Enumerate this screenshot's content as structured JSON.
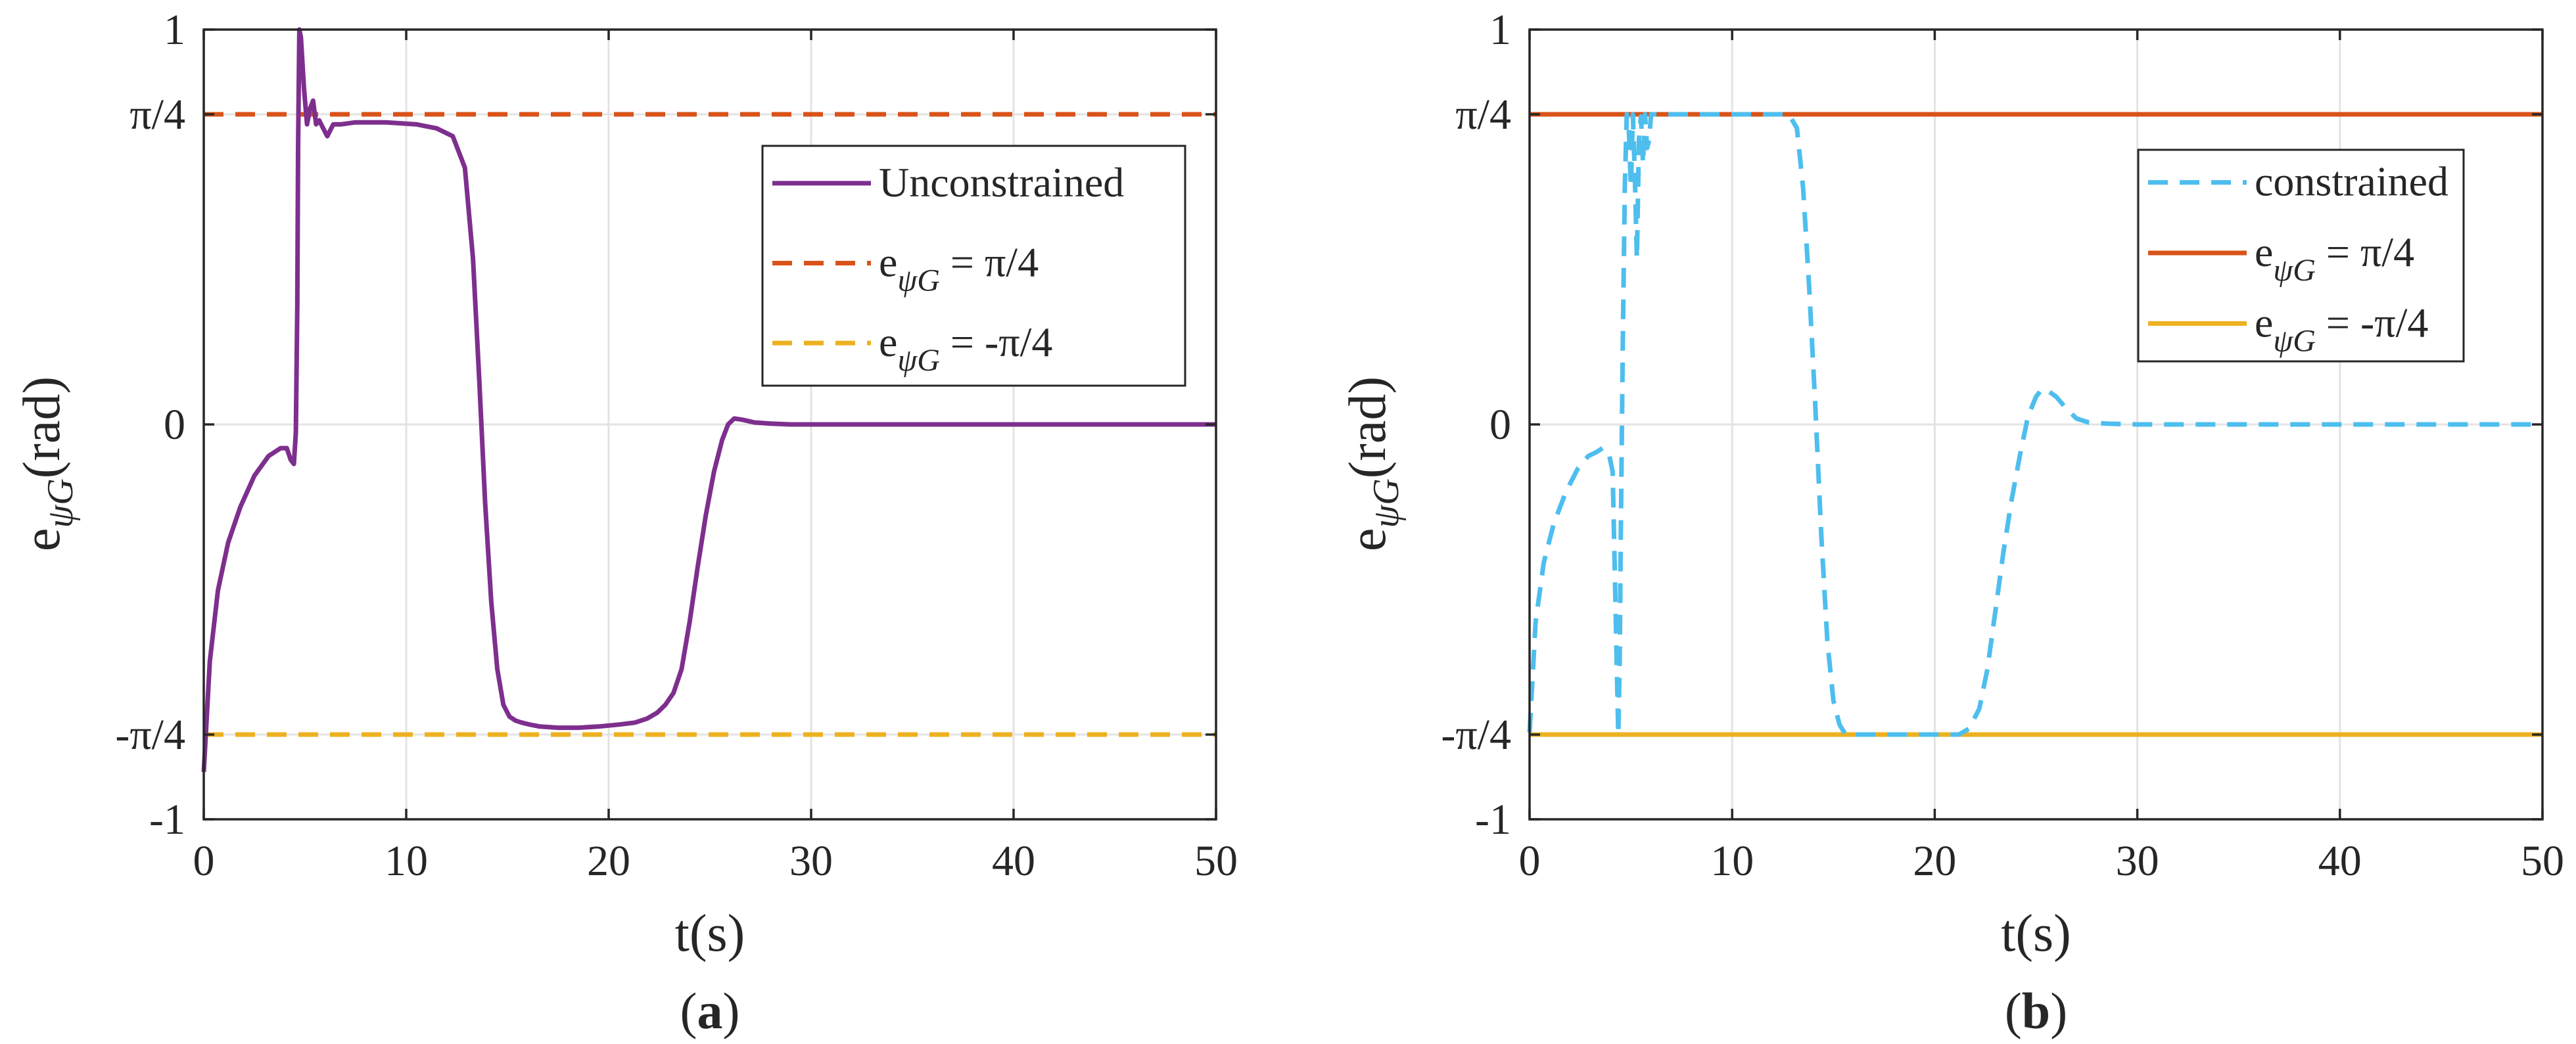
{
  "chart_data": [
    {
      "panel_label": "a",
      "type": "line",
      "xlabel": "t(s)",
      "ylabel_main": "e",
      "ylabel_sub": "ψG",
      "ylabel_unit": "(rad)",
      "xlim": [
        0,
        50
      ],
      "ylim": [
        -1,
        1
      ],
      "xticks": [
        {
          "value": 0,
          "label": "0"
        },
        {
          "value": 10,
          "label": "10"
        },
        {
          "value": 20,
          "label": "20"
        },
        {
          "value": 30,
          "label": "30"
        },
        {
          "value": 40,
          "label": "40"
        },
        {
          "value": 50,
          "label": "50"
        }
      ],
      "yticks": [
        {
          "value": -1,
          "label": "-1"
        },
        {
          "value": -0.7854,
          "label": "-π/4"
        },
        {
          "value": 0,
          "label": "0"
        },
        {
          "value": 0.7854,
          "label": "π/4"
        },
        {
          "value": 1,
          "label": "1"
        }
      ],
      "grid": true,
      "legend_position": "top-right",
      "series": [
        {
          "name": "Unconstrained",
          "color": "#7e2f8e",
          "dash": "solid",
          "label_main": "Unconstrained",
          "label_sub": "",
          "label_rest": "",
          "x": [
            0,
            0.3,
            0.7,
            1.2,
            1.8,
            2.5,
            3.2,
            3.8,
            4.1,
            4.3,
            4.45,
            4.55,
            4.62,
            4.66,
            4.72,
            4.8,
            4.95,
            5.1,
            5.25,
            5.4,
            5.55,
            5.7,
            5.9,
            6.1,
            6.4,
            6.8,
            7.5,
            9,
            10.5,
            11.5,
            12.3,
            12.9,
            13.3,
            13.6,
            13.9,
            14.2,
            14.5,
            14.8,
            15.1,
            15.4,
            15.7,
            16.1,
            16.6,
            17.5,
            18.5,
            19.5,
            20.5,
            21.3,
            21.9,
            22.4,
            22.8,
            23.2,
            23.6,
            24,
            24.4,
            24.8,
            25.2,
            25.6,
            25.9,
            26.2,
            26.6,
            27.2,
            28,
            29,
            30,
            35,
            40,
            45,
            50
          ],
          "y": [
            -0.88,
            -0.6,
            -0.42,
            -0.3,
            -0.21,
            -0.13,
            -0.08,
            -0.06,
            -0.06,
            -0.09,
            -0.1,
            -0.02,
            0.3,
            0.7,
            1.0,
            0.98,
            0.85,
            0.76,
            0.8,
            0.82,
            0.76,
            0.77,
            0.75,
            0.73,
            0.76,
            0.76,
            0.765,
            0.765,
            0.76,
            0.75,
            0.73,
            0.65,
            0.42,
            0.12,
            -0.2,
            -0.45,
            -0.62,
            -0.71,
            -0.74,
            -0.75,
            -0.755,
            -0.76,
            -0.765,
            -0.768,
            -0.768,
            -0.765,
            -0.76,
            -0.755,
            -0.745,
            -0.73,
            -0.71,
            -0.68,
            -0.62,
            -0.5,
            -0.36,
            -0.23,
            -0.12,
            -0.04,
            0.0,
            0.015,
            0.012,
            0.005,
            0.002,
            0.0,
            0.0,
            0.0,
            0.0,
            0.0,
            0.0
          ]
        },
        {
          "name": "e_ψG = π/4",
          "color": "#d95319",
          "dash": "dashed",
          "label_main": "e",
          "label_sub": "ψG",
          "label_rest": " = π/4",
          "x": [
            0,
            50
          ],
          "y": [
            0.7854,
            0.7854
          ]
        },
        {
          "name": "e_ψG = -π/4",
          "color": "#edb120",
          "dash": "dashed",
          "label_main": "e",
          "label_sub": "ψG",
          "label_rest": " = -π/4",
          "x": [
            0,
            50
          ],
          "y": [
            -0.7854,
            -0.7854
          ]
        }
      ]
    },
    {
      "panel_label": "b",
      "type": "line",
      "xlabel": "t(s)",
      "ylabel_main": "e",
      "ylabel_sub": "ψG",
      "ylabel_unit": "(rad)",
      "xlim": [
        0,
        50
      ],
      "ylim": [
        -1,
        1
      ],
      "xticks": [
        {
          "value": 0,
          "label": "0"
        },
        {
          "value": 10,
          "label": "10"
        },
        {
          "value": 20,
          "label": "20"
        },
        {
          "value": 30,
          "label": "30"
        },
        {
          "value": 40,
          "label": "40"
        },
        {
          "value": 50,
          "label": "50"
        }
      ],
      "yticks": [
        {
          "value": -1,
          "label": "-1"
        },
        {
          "value": -0.7854,
          "label": "-π/4"
        },
        {
          "value": 0,
          "label": "0"
        },
        {
          "value": 0.7854,
          "label": "π/4"
        },
        {
          "value": 1,
          "label": "1"
        }
      ],
      "grid": true,
      "legend_position": "top-right",
      "series": [
        {
          "name": "constrained",
          "color": "#4dbeee",
          "dash": "dashed",
          "label_main": "constrained",
          "label_sub": "",
          "label_rest": "",
          "x": [
            0,
            0.3,
            0.7,
            1.2,
            1.8,
            2.4,
            2.9,
            3.3,
            3.6,
            3.9,
            4.1,
            4.2,
            4.3,
            4.38,
            4.45,
            4.5,
            4.6,
            4.7,
            4.8,
            4.9,
            5.0,
            5.1,
            5.2,
            5.3,
            5.4,
            5.5,
            5.6,
            5.7,
            5.8,
            5.9,
            6.0,
            6.2,
            6.6,
            7.5,
            9,
            10.5,
            12,
            12.8,
            13.2,
            13.5,
            13.8,
            14.1,
            14.4,
            14.7,
            15.0,
            15.3,
            15.6,
            16,
            17,
            18.5,
            20,
            21.2,
            21.7,
            22.2,
            22.6,
            23.0,
            23.4,
            23.8,
            24.2,
            24.6,
            25.0,
            25.3,
            25.6,
            26.0,
            26.5,
            27.0,
            27.6,
            28.5,
            30,
            35,
            40,
            45,
            50
          ],
          "y": [
            -0.78,
            -0.5,
            -0.35,
            -0.25,
            -0.17,
            -0.11,
            -0.08,
            -0.07,
            -0.06,
            -0.07,
            -0.12,
            -0.35,
            -0.6,
            -0.7854,
            -0.6,
            -0.3,
            0.2,
            0.6,
            0.7854,
            0.75,
            0.6,
            0.7854,
            0.62,
            0.42,
            0.72,
            0.78,
            0.66,
            0.7854,
            0.7,
            0.72,
            0.7854,
            0.7854,
            0.7854,
            0.7854,
            0.7854,
            0.7854,
            0.7854,
            0.7854,
            0.75,
            0.6,
            0.35,
            0.05,
            -0.28,
            -0.55,
            -0.7,
            -0.76,
            -0.7854,
            -0.7854,
            -0.7854,
            -0.7854,
            -0.7854,
            -0.7854,
            -0.77,
            -0.72,
            -0.62,
            -0.47,
            -0.32,
            -0.19,
            -0.08,
            0.02,
            0.07,
            0.09,
            0.085,
            0.07,
            0.04,
            0.015,
            0.005,
            0.002,
            0.0,
            0.0,
            0.0,
            0.0,
            0.0
          ]
        },
        {
          "name": "e_ψG = π/4",
          "color": "#d95319",
          "dash": "solid",
          "label_main": "e",
          "label_sub": "ψG",
          "label_rest": " = π/4",
          "x": [
            0,
            50
          ],
          "y": [
            0.7854,
            0.7854
          ]
        },
        {
          "name": "e_ψG = -π/4",
          "color": "#edb120",
          "dash": "solid",
          "label_main": "e",
          "label_sub": "ψG",
          "label_rest": " = -π/4",
          "x": [
            0,
            50
          ],
          "y": [
            -0.7854,
            -0.7854
          ]
        }
      ]
    }
  ]
}
